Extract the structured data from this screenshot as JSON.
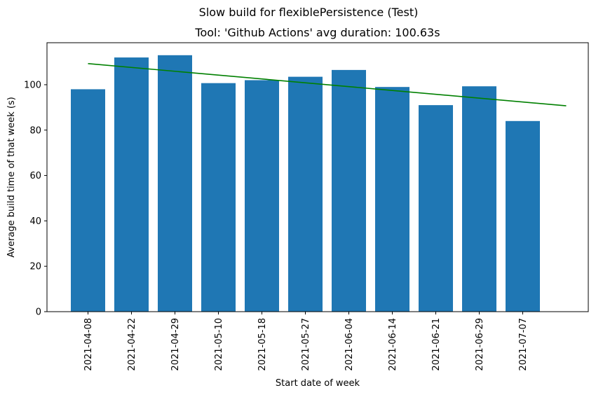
{
  "chart_data": {
    "type": "bar",
    "suptitle": "Slow build for flexiblePersistence (Test)",
    "title": "Tool: 'Github Actions' avg duration: 100.63s",
    "xlabel": "Start date of week",
    "ylabel": "Average build time of that week (s)",
    "categories": [
      "2021-04-08",
      "2021-04-22",
      "2021-04-29",
      "2021-05-10",
      "2021-05-18",
      "2021-05-27",
      "2021-06-04",
      "2021-06-14",
      "2021-06-21",
      "2021-06-29",
      "2021-07-07"
    ],
    "values": [
      98,
      112,
      113,
      100.7,
      102,
      103.5,
      106.5,
      99,
      91,
      99.3,
      84
    ],
    "yticks": [
      0,
      20,
      40,
      60,
      80,
      100
    ],
    "ylim": [
      0,
      118.5
    ],
    "bar_color": "#1f77b4",
    "trend_color": "#008000",
    "trend_line": {
      "start": 109.3,
      "end": 90.7
    },
    "grid": false,
    "legend": "none"
  }
}
